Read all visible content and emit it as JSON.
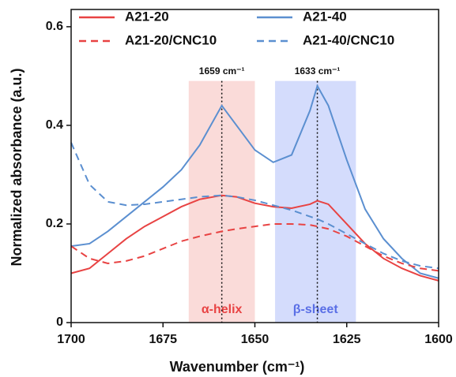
{
  "chart_data": {
    "type": "line",
    "xlabel": "Wavenumber (cm⁻¹)",
    "ylabel": "Normalized absorbance (a.u.)",
    "x": [
      1700,
      1695,
      1690,
      1685,
      1680,
      1675,
      1670,
      1665,
      1659,
      1655,
      1650,
      1645,
      1640,
      1635,
      1633,
      1630,
      1625,
      1620,
      1615,
      1610,
      1605,
      1600
    ],
    "series": [
      {
        "name": "A21-20",
        "color": "#e84343",
        "dash": false,
        "values": [
          0.1,
          0.11,
          0.14,
          0.17,
          0.195,
          0.215,
          0.235,
          0.25,
          0.258,
          0.255,
          0.242,
          0.235,
          0.232,
          0.24,
          0.247,
          0.24,
          0.2,
          0.16,
          0.13,
          0.11,
          0.095,
          0.085
        ]
      },
      {
        "name": "A21-40",
        "color": "#5b8fd0",
        "dash": false,
        "values": [
          0.155,
          0.16,
          0.185,
          0.215,
          0.245,
          0.275,
          0.31,
          0.36,
          0.44,
          0.4,
          0.35,
          0.325,
          0.34,
          0.43,
          0.48,
          0.44,
          0.33,
          0.23,
          0.17,
          0.13,
          0.1,
          0.09
        ]
      },
      {
        "name": "A21-20/CNC10",
        "color": "#e84343",
        "dash": true,
        "values": [
          0.155,
          0.13,
          0.12,
          0.125,
          0.135,
          0.15,
          0.165,
          0.175,
          0.185,
          0.19,
          0.195,
          0.2,
          0.2,
          0.198,
          0.195,
          0.19,
          0.175,
          0.155,
          0.135,
          0.12,
          0.11,
          0.105
        ]
      },
      {
        "name": "A21-40/CNC10",
        "color": "#5b8fd0",
        "dash": true,
        "values": [
          0.365,
          0.28,
          0.245,
          0.238,
          0.24,
          0.245,
          0.25,
          0.255,
          0.258,
          0.255,
          0.248,
          0.238,
          0.228,
          0.215,
          0.21,
          0.2,
          0.18,
          0.16,
          0.14,
          0.125,
          0.115,
          0.11
        ]
      }
    ],
    "regions": [
      {
        "label": "α-helix",
        "xlim": [
          1668,
          1650
        ],
        "color": "#f9d2cf",
        "label_color": "#e84343"
      },
      {
        "label": "β-sheet",
        "xlim": [
          1644.5,
          1622.5
        ],
        "color": "#c9d3fb",
        "label_color": "#5a6fe6"
      }
    ],
    "annotations": [
      {
        "text": "1659 cm⁻¹",
        "x": 1659
      },
      {
        "text": "1633 cm⁻¹",
        "x": 1633
      }
    ],
    "xlim": [
      1700,
      1600
    ],
    "xticks": [
      1700,
      1675,
      1650,
      1625,
      1600
    ],
    "ylim": [
      0,
      0.635
    ],
    "yticks": [
      0,
      0.2,
      0.4,
      0.6
    ]
  }
}
